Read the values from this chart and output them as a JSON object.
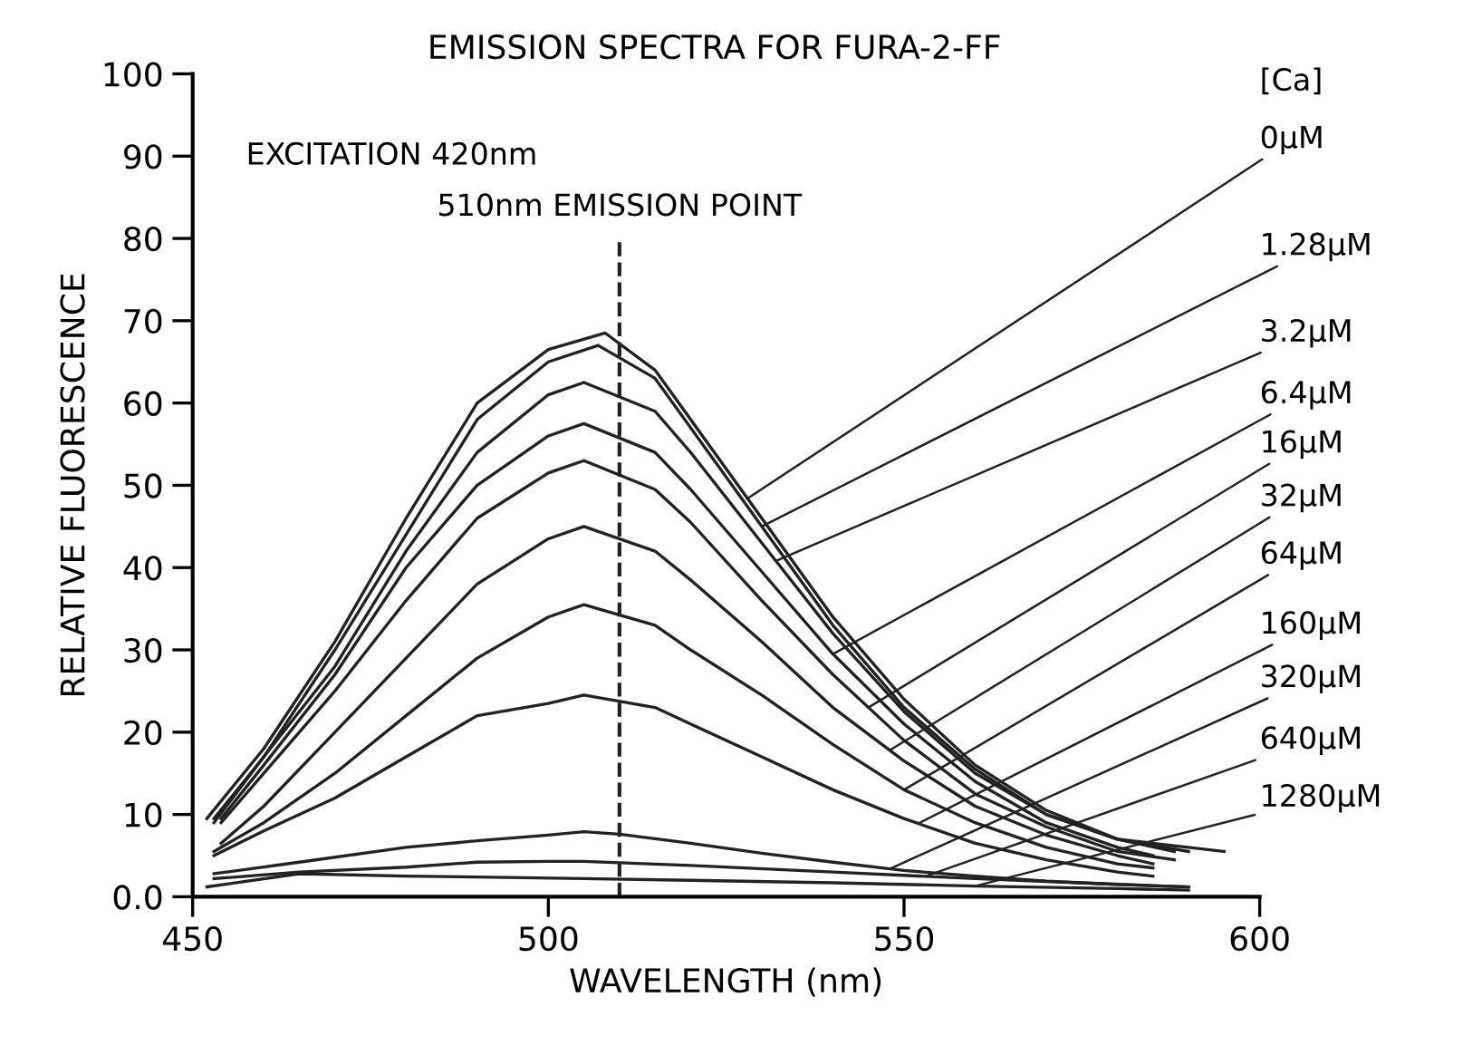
{
  "chart_data": {
    "type": "line",
    "title": "EMISSION SPECTRA FOR FURA-2-FF",
    "xlabel": "WAVELENGTH (nm)",
    "ylabel": "RELATIVE FLUORESCENCE",
    "legend_title": "[Ca]",
    "annotations": [
      "EXCITATION 420nm"
    ],
    "ref_lines": [
      {
        "axis": "x",
        "value": 510,
        "label": "510nm EMISSION POINT",
        "color": "#222222",
        "line_style": "dashed"
      }
    ],
    "xlim": [
      450,
      600
    ],
    "xticks": [
      450,
      500,
      550,
      600
    ],
    "ylim": [
      0,
      100
    ],
    "yticks": [
      {
        "value": 0,
        "label": "0.0"
      },
      10,
      20,
      30,
      40,
      50,
      60,
      70,
      80,
      90,
      100
    ],
    "grid": false,
    "marker": "none",
    "line_style": "solid",
    "series": [
      {
        "name": "0μM",
        "color": "#222222",
        "x": [
          452,
          460,
          470,
          480,
          490,
          500,
          508,
          515,
          520,
          530,
          540,
          550,
          560,
          570,
          580,
          588
        ],
        "values": [
          9.5,
          18,
          31,
          46,
          60,
          66.5,
          68.5,
          64,
          58,
          46,
          34,
          24,
          16,
          10.5,
          7,
          5.5
        ]
      },
      {
        "name": "1.28μM",
        "color": "#222222",
        "x": [
          453,
          460,
          470,
          480,
          490,
          500,
          507,
          515,
          520,
          530,
          540,
          550,
          560,
          570,
          580,
          590
        ],
        "values": [
          9,
          17,
          30,
          44,
          58,
          65,
          67,
          63,
          57,
          45,
          33,
          23,
          15.5,
          10,
          7,
          5.5
        ]
      },
      {
        "name": "3.2μM",
        "color": "#222222",
        "x": [
          453,
          460,
          470,
          480,
          490,
          500,
          505,
          515,
          520,
          530,
          540,
          550,
          560,
          570,
          580,
          595
        ],
        "values": [
          9.5,
          17,
          28,
          42,
          54,
          61,
          62.5,
          59,
          54,
          43,
          32,
          22.5,
          15,
          10,
          7,
          5.5
        ]
      },
      {
        "name": "6.4μM",
        "color": "#222222",
        "x": [
          454,
          460,
          470,
          480,
          490,
          500,
          505,
          515,
          520,
          530,
          540,
          550,
          560,
          570,
          580,
          585
        ],
        "values": [
          9.5,
          16,
          27,
          40,
          50,
          56,
          57.5,
          54,
          49.5,
          39.5,
          29.5,
          21,
          14,
          9,
          6,
          5
        ]
      },
      {
        "name": "16μM",
        "color": "#222222",
        "x": [
          454,
          460,
          470,
          480,
          490,
          500,
          505,
          515,
          520,
          530,
          540,
          550,
          560,
          570,
          580,
          588
        ],
        "values": [
          9,
          15,
          25,
          36,
          46,
          51.5,
          53,
          49.5,
          45.5,
          36,
          27,
          19,
          12.5,
          8.5,
          5.5,
          4.5
        ]
      },
      {
        "name": "32μM",
        "color": "#222222",
        "x": [
          454,
          460,
          470,
          480,
          490,
          500,
          505,
          515,
          520,
          530,
          540,
          550,
          560,
          570,
          580,
          585
        ],
        "values": [
          6.5,
          11,
          20,
          29,
          38,
          43.5,
          45,
          42,
          38.5,
          31,
          23,
          16.5,
          11,
          7.5,
          5,
          4
        ]
      },
      {
        "name": "64μM",
        "color": "#222222",
        "x": [
          453,
          460,
          470,
          480,
          490,
          500,
          505,
          515,
          520,
          530,
          540,
          550,
          560,
          570,
          580,
          585
        ],
        "values": [
          5.5,
          9,
          15,
          22,
          29,
          34,
          35.5,
          33,
          30,
          24.5,
          18.5,
          13,
          9,
          6,
          4,
          3.5
        ]
      },
      {
        "name": "160μM",
        "color": "#222222",
        "x": [
          453,
          460,
          470,
          480,
          490,
          500,
          505,
          515,
          520,
          530,
          540,
          550,
          560,
          570,
          580,
          585
        ],
        "values": [
          5,
          8,
          12,
          17,
          22,
          23.5,
          24.5,
          23,
          21,
          17,
          13,
          9.5,
          6.5,
          4.5,
          3,
          2.5
        ]
      },
      {
        "name": "320μM",
        "color": "#222222",
        "x": [
          453,
          465,
          480,
          490,
          500,
          505,
          510,
          520,
          530,
          540,
          550,
          560,
          570,
          580,
          590
        ],
        "values": [
          2.8,
          4.2,
          6,
          6.8,
          7.5,
          7.9,
          7.6,
          6.5,
          5.3,
          4.2,
          3.2,
          2.5,
          1.9,
          1.5,
          1.2
        ]
      },
      {
        "name": "640μM",
        "color": "#222222",
        "x": [
          453,
          465,
          480,
          490,
          500,
          505,
          520,
          540,
          560,
          580,
          590
        ],
        "values": [
          2.2,
          3,
          3.6,
          4.2,
          4.3,
          4.3,
          3.8,
          3,
          2.2,
          1.5,
          1.2
        ]
      },
      {
        "name": "1280μM",
        "color": "#222222",
        "x": [
          452,
          465,
          480,
          490,
          505,
          520,
          540,
          560,
          580,
          590
        ],
        "values": [
          1.2,
          2.8,
          2.5,
          2.4,
          2.2,
          2,
          1.7,
          1.3,
          1,
          0.8
        ]
      }
    ]
  }
}
